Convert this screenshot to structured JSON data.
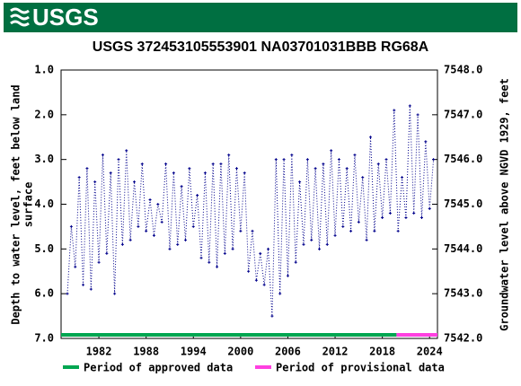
{
  "header": {
    "logo": "USGS"
  },
  "chart_data": {
    "type": "line",
    "title": "USGS 372453105553901 NA03701031BBB  RG68A",
    "ylabel_lines": [
      "Depth to water level, feet below land",
      "surface"
    ],
    "y2label": "Groundwater level above NGVD 1929, feet",
    "xlim": [
      1977.2,
      2025.0
    ],
    "xticks": [
      1982,
      1988,
      1994,
      2000,
      2006,
      2012,
      2018,
      2024
    ],
    "ylim": [
      1,
      7
    ],
    "invert_y": true,
    "yticks": [
      {
        "value": 1,
        "label": "1.0"
      },
      {
        "value": 2,
        "label": "2.0"
      },
      {
        "value": 3,
        "label": "3.0"
      },
      {
        "value": 4,
        "label": "4.0"
      },
      {
        "value": 5,
        "label": "5.0"
      },
      {
        "value": 6,
        "label": "6.0"
      },
      {
        "value": 7,
        "label": "7.0"
      }
    ],
    "y2lim": [
      7548,
      7542
    ],
    "y2ticks": [
      {
        "value": 7548,
        "label": "7548.0"
      },
      {
        "value": 7547,
        "label": "7547.0"
      },
      {
        "value": 7546,
        "label": "7546.0"
      },
      {
        "value": 7545,
        "label": "7545.0"
      },
      {
        "value": 7544,
        "label": "7544.0"
      },
      {
        "value": 7543,
        "label": "7543.0"
      },
      {
        "value": 7542,
        "label": "7542.0"
      }
    ],
    "x": [
      1978.0,
      1978.5,
      1979.0,
      1979.5,
      1980.0,
      1980.5,
      1981.0,
      1981.5,
      1982.0,
      1982.5,
      1983.0,
      1983.5,
      1984.0,
      1984.5,
      1985.0,
      1985.5,
      1986.0,
      1986.5,
      1987.0,
      1987.5,
      1988.0,
      1988.5,
      1989.0,
      1989.5,
      1990.0,
      1990.5,
      1991.0,
      1991.5,
      1992.0,
      1992.5,
      1993.0,
      1993.5,
      1994.0,
      1994.5,
      1995.0,
      1995.5,
      1996.0,
      1996.5,
      1997.0,
      1997.5,
      1998.0,
      1998.5,
      1999.0,
      1999.5,
      2000.0,
      2000.5,
      2001.0,
      2001.5,
      2002.0,
      2002.5,
      2003.0,
      2003.5,
      2004.0,
      2004.5,
      2005.0,
      2005.5,
      2006.0,
      2006.5,
      2007.0,
      2007.5,
      2008.0,
      2008.5,
      2009.0,
      2009.5,
      2010.0,
      2010.5,
      2011.0,
      2011.5,
      2012.0,
      2012.5,
      2013.0,
      2013.5,
      2014.0,
      2014.5,
      2015.0,
      2015.5,
      2016.0,
      2016.5,
      2017.0,
      2017.5,
      2018.0,
      2018.5,
      2019.0,
      2019.5,
      2020.0,
      2020.5,
      2021.0,
      2021.5,
      2022.0,
      2022.5,
      2023.0,
      2023.5,
      2024.0,
      2024.5
    ],
    "series": [
      {
        "color": "#00008b",
        "values": [
          6.0,
          4.5,
          5.4,
          3.4,
          5.8,
          3.2,
          5.9,
          3.5,
          5.3,
          2.9,
          5.1,
          3.3,
          6.0,
          3.0,
          4.9,
          2.8,
          4.8,
          3.5,
          4.5,
          3.1,
          4.6,
          3.9,
          4.7,
          4.0,
          4.4,
          3.1,
          5.0,
          3.3,
          4.9,
          3.6,
          4.8,
          3.2,
          4.5,
          3.8,
          5.2,
          3.3,
          5.3,
          3.1,
          5.4,
          3.1,
          5.1,
          2.9,
          5.0,
          3.2,
          4.6,
          3.3,
          5.5,
          4.6,
          5.7,
          5.1,
          5.8,
          5.0,
          6.5,
          3.0,
          6.0,
          3.0,
          5.6,
          2.9,
          5.3,
          3.5,
          4.9,
          3.0,
          4.8,
          3.2,
          5.0,
          3.1,
          4.9,
          2.8,
          4.7,
          3.0,
          4.5,
          3.2,
          4.6,
          2.9,
          4.4,
          3.4,
          4.8,
          2.5,
          4.6,
          3.1,
          4.3,
          3.0,
          4.2,
          1.9,
          4.6,
          3.4,
          4.3,
          1.8,
          4.2,
          2.0,
          4.3,
          2.6,
          4.1,
          3.0
        ]
      }
    ],
    "periods": [
      {
        "name": "Period of approved data",
        "color": "#00a651",
        "start": 1977.2,
        "end": 2019.8
      },
      {
        "name": "Period of provisional data",
        "color": "#ff40e0",
        "start": 2019.8,
        "end": 2025.0
      }
    ]
  }
}
